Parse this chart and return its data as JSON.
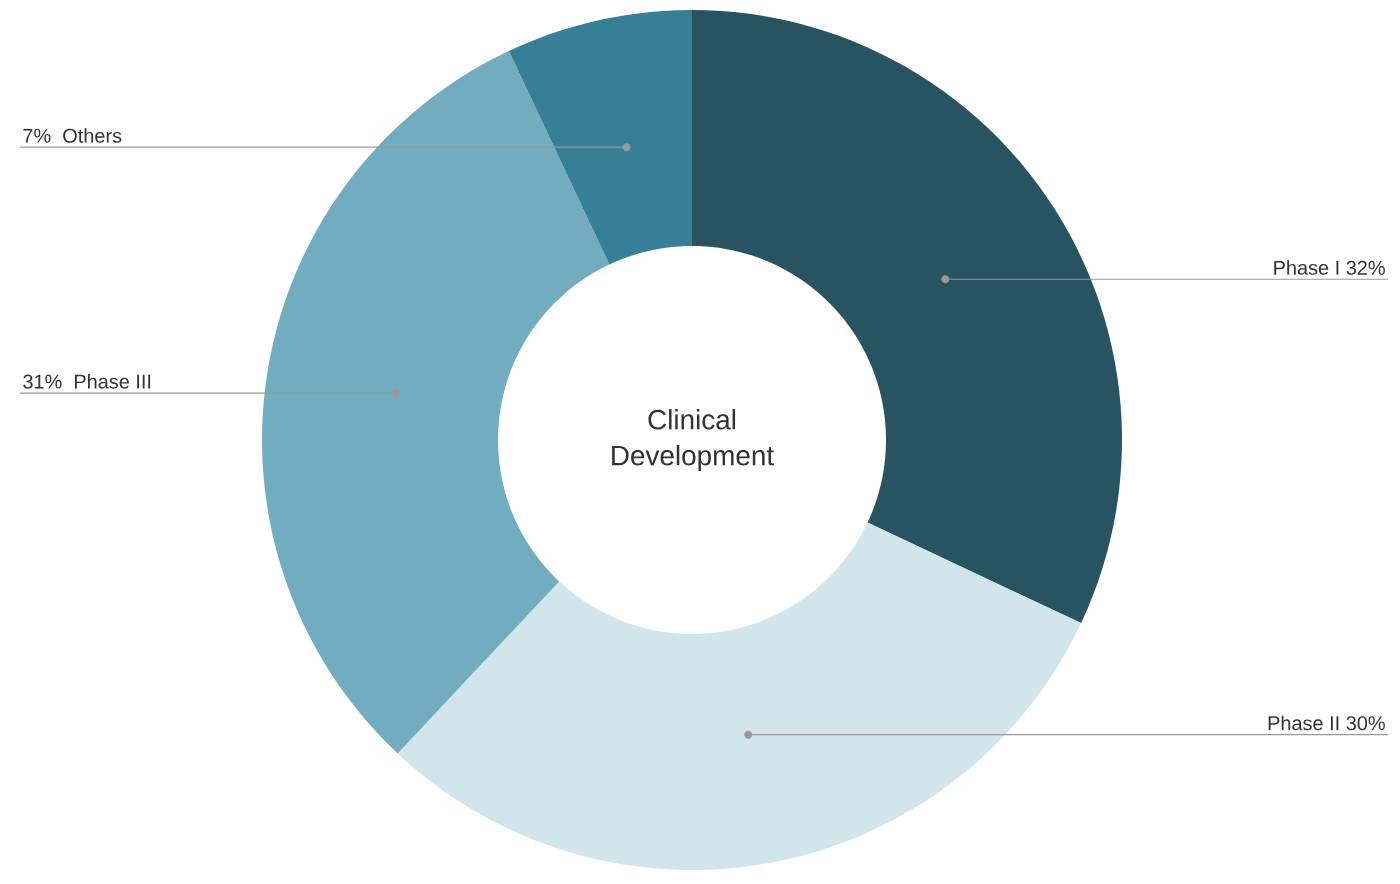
{
  "chart_data": {
    "type": "donut",
    "title": "Clinical Development",
    "categories": [
      "Phase I",
      "Phase II",
      "Phase III",
      "Others"
    ],
    "values": [
      32,
      30,
      31,
      7
    ],
    "value_labels": [
      "32%",
      "30%",
      "31%",
      "7%"
    ],
    "colors": [
      "#285462",
      "#d2e5eb",
      "#71adbf",
      "#367f96"
    ]
  }
}
